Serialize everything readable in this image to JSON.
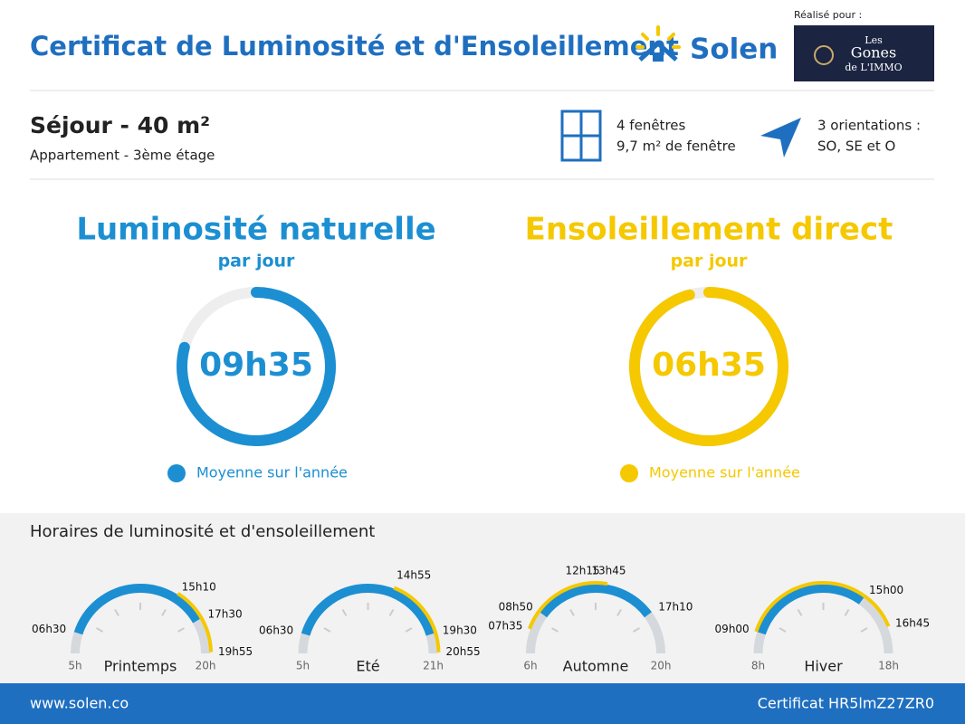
{
  "header": {
    "title": "Certificat de Luminosité et d'Ensoleillement",
    "brand": "Solen",
    "made_for": "Réalisé pour :",
    "client_line1": "Les",
    "client_line2": "Gones",
    "client_line3": "de L'IMMO"
  },
  "room": {
    "title": "Séjour - 40 m²",
    "subtitle": "Appartement - 3ème étage",
    "windows_line1": "4 fenêtres",
    "windows_line2": "9,7 m² de fenêtre",
    "orient_line1": "3 orientations :",
    "orient_line2": "SO, SE et O"
  },
  "summary": [
    {
      "title": "Luminosité naturelle",
      "subtitle": "par jour",
      "value": "09h35",
      "legend": "Moyenne sur l'année"
    },
    {
      "title": "Ensoleillement direct",
      "subtitle": "par jour",
      "value": "06h35",
      "legend": "Moyenne sur l'année"
    }
  ],
  "schedule": {
    "title": "Horaires de luminosité et d'ensoleillement",
    "gauges": [
      {
        "name": "Printemps",
        "start": "5h",
        "end": "20h",
        "times": [
          "06h30",
          "15h10",
          "17h30",
          "19h55"
        ],
        "light": [
          0,
          2
        ],
        "sun": [
          1,
          3
        ]
      },
      {
        "name": "Eté",
        "start": "5h",
        "end": "21h",
        "times": [
          "06h30",
          "14h55",
          "19h30",
          "20h55"
        ],
        "light": [
          0,
          2
        ],
        "sun": [
          1,
          3
        ]
      },
      {
        "name": "Automne",
        "start": "6h",
        "end": "20h",
        "times": [
          "07h35",
          "08h50",
          "12h15",
          "13h45",
          "17h10"
        ],
        "light": [
          1,
          4
        ],
        "sun": [
          0,
          3
        ]
      },
      {
        "name": "Hiver",
        "start": "8h",
        "end": "18h",
        "times": [
          "09h00",
          "15h00",
          "16h45"
        ],
        "light": [
          0,
          1
        ],
        "sun": [
          0,
          2
        ]
      }
    ]
  },
  "footer": {
    "site": "www.solen.co",
    "certificate": "Certificat HR5lmZ27ZR0"
  }
}
